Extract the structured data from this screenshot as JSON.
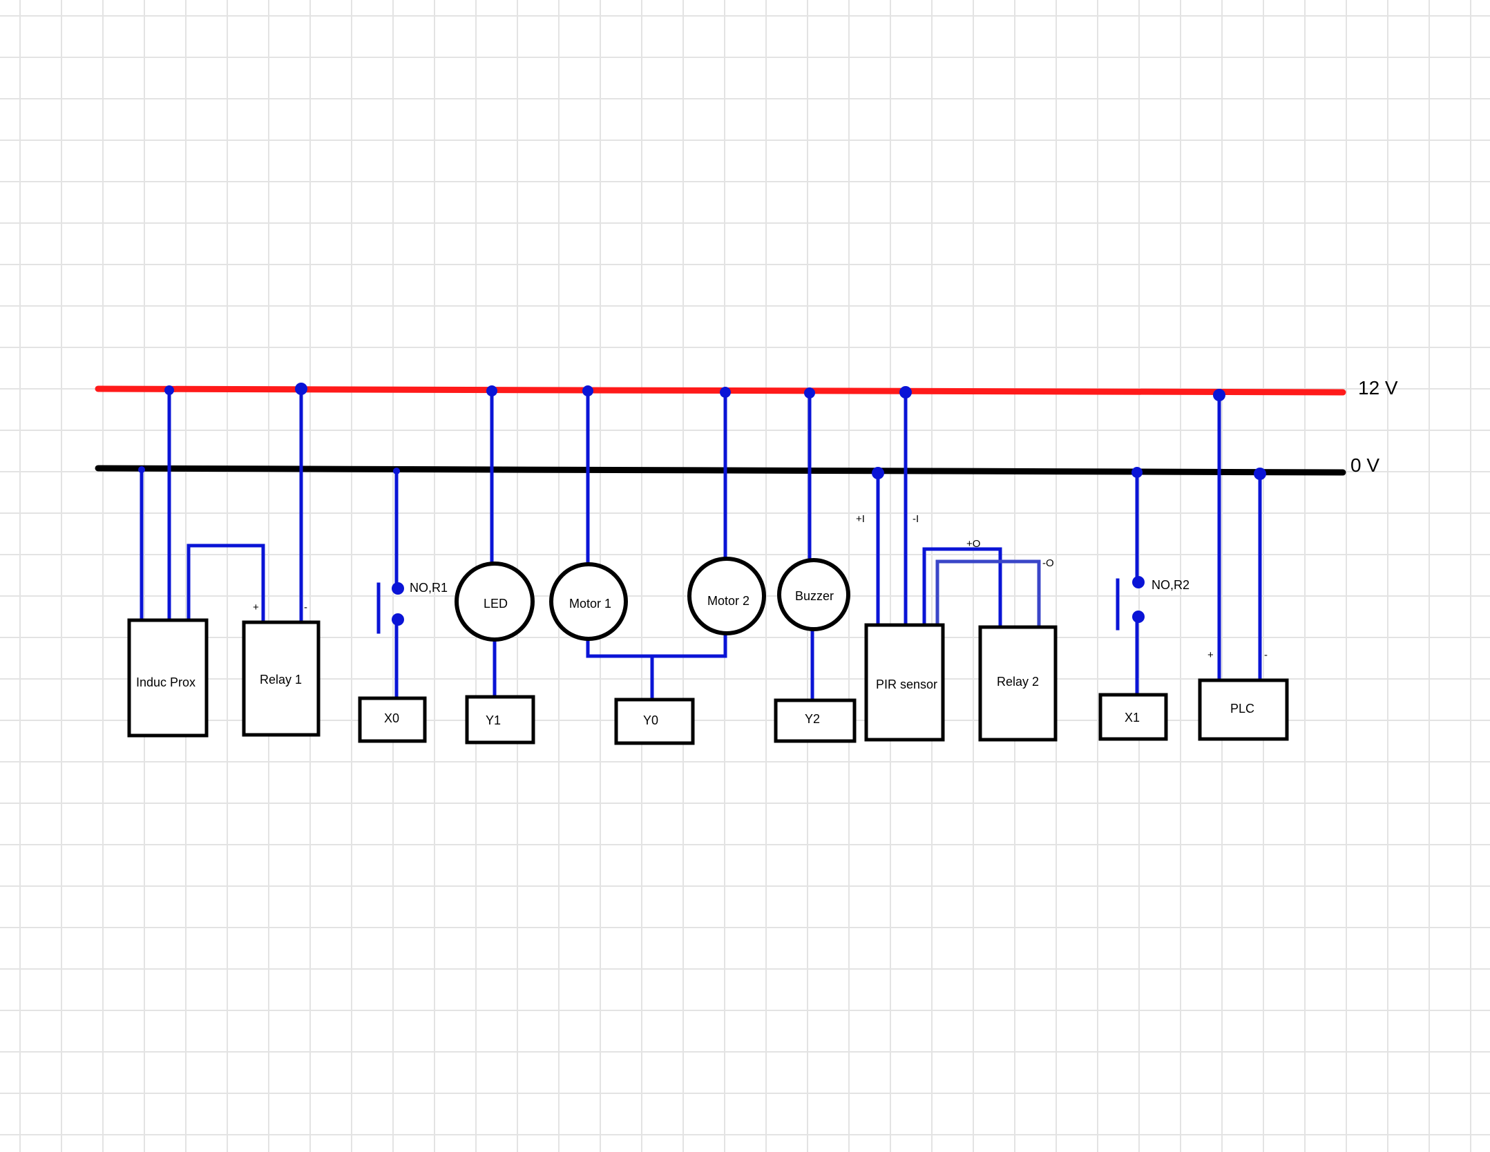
{
  "rails": {
    "positive": {
      "label": "12 V",
      "color": "#ff1a1a"
    },
    "ground": {
      "label": "0 V",
      "color": "#000000"
    }
  },
  "wire_color": "#0a14d6",
  "wire_alt_color": "#3a46c8",
  "components": {
    "induc_prox": "Induc Prox",
    "relay1": "Relay 1",
    "relay1_plus": "+",
    "relay1_minus": "-",
    "switch_r1": "NO,R1",
    "x0": "X0",
    "led": "LED",
    "y1": "Y1",
    "motor1": "Motor 1",
    "motor2": "Motor 2",
    "y0": "Y0",
    "buzzer": "Buzzer",
    "y2": "Y2",
    "pir": "PIR sensor",
    "pir_plus_i": "+I",
    "pir_minus_i": "-I",
    "pir_plus_o": "+O",
    "pir_minus_o": "-O",
    "relay2": "Relay 2",
    "switch_r2": "NO,R2",
    "x1": "X1",
    "plc": "PLC",
    "plc_plus": "+",
    "plc_minus": "-"
  }
}
